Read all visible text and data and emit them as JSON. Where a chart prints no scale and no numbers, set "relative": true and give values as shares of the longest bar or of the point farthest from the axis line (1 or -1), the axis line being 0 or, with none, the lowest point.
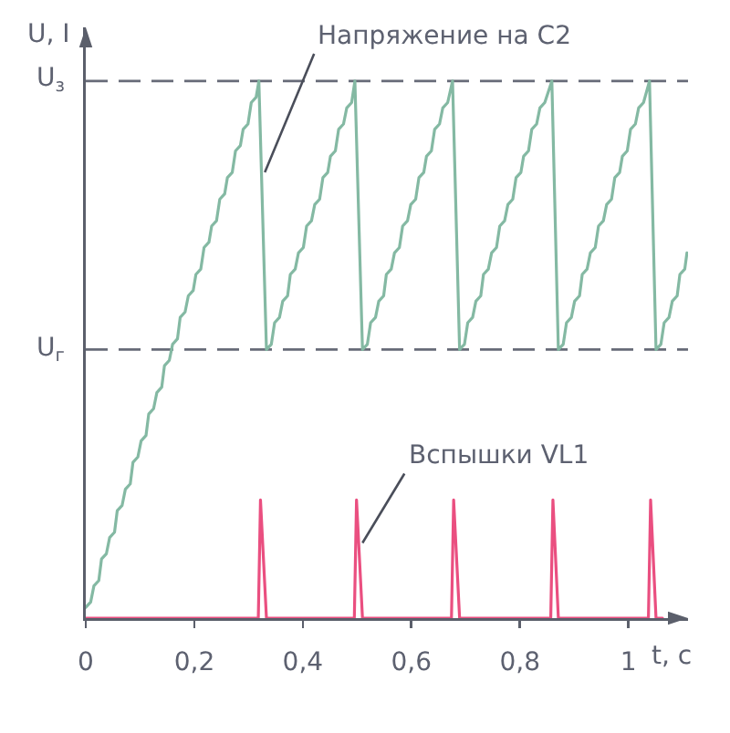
{
  "chart_data": {
    "type": "line",
    "relative": true,
    "ylabel": "U, I",
    "xlabel": "t, c",
    "xlim": [
      0,
      1.11
    ],
    "xticks": [
      0,
      {
        "value": 0.2,
        "label": "0,2"
      },
      {
        "value": 0.4,
        "label": "0,4"
      },
      {
        "value": 0.6,
        "label": "0,6"
      },
      {
        "value": 0.8,
        "label": "0,8"
      },
      1
    ],
    "series": [
      {
        "color": "#84b9a3",
        "x": [
          0,
          0.009,
          0.015,
          0.024,
          0.029,
          0.038,
          0.044,
          0.053,
          0.058,
          0.067,
          0.073,
          0.082,
          0.087,
          0.096,
          0.102,
          0.111,
          0.116,
          0.125,
          0.131,
          0.14,
          0.145,
          0.154,
          0.16,
          0.169,
          0.174,
          0.183,
          0.189,
          0.198,
          0.203,
          0.212,
          0.218,
          0.227,
          0.232,
          0.241,
          0.247,
          0.256,
          0.261,
          0.27,
          0.276,
          0.285,
          0.29,
          0.299,
          0.305,
          0.314,
          0.319,
          0.333,
          0.342,
          0.348,
          0.357,
          0.363,
          0.372,
          0.377,
          0.386,
          0.392,
          0.401,
          0.407,
          0.416,
          0.422,
          0.431,
          0.437,
          0.446,
          0.451,
          0.46,
          0.466,
          0.475,
          0.481,
          0.49,
          0.496,
          0.51,
          0.519,
          0.525,
          0.534,
          0.54,
          0.549,
          0.554,
          0.563,
          0.569,
          0.578,
          0.584,
          0.593,
          0.599,
          0.608,
          0.614,
          0.623,
          0.628,
          0.637,
          0.643,
          0.652,
          0.658,
          0.667,
          0.676,
          0.689,
          0.698,
          0.704,
          0.713,
          0.719,
          0.728,
          0.733,
          0.742,
          0.748,
          0.757,
          0.763,
          0.772,
          0.778,
          0.787,
          0.793,
          0.802,
          0.807,
          0.816,
          0.822,
          0.831,
          0.837,
          0.846,
          0.859,
          0.871,
          0.88,
          0.886,
          0.895,
          0.901,
          0.91,
          0.915,
          0.924,
          0.93,
          0.939,
          0.945,
          0.954,
          0.96,
          0.969,
          0.975,
          0.984,
          0.989,
          0.998,
          1.004,
          1.013,
          1.019,
          1.028,
          1.039,
          1.051,
          1.06,
          1.066,
          1.075,
          1.081,
          1.09,
          1.095,
          1.104,
          1.108
        ],
        "values": [
          0.02,
          0.03,
          0.06,
          0.07,
          0.11,
          0.12,
          0.15,
          0.16,
          0.2,
          0.21,
          0.24,
          0.25,
          0.29,
          0.3,
          0.33,
          0.34,
          0.38,
          0.39,
          0.42,
          0.43,
          0.47,
          0.48,
          0.51,
          0.52,
          0.56,
          0.57,
          0.6,
          0.61,
          0.64,
          0.65,
          0.69,
          0.7,
          0.73,
          0.74,
          0.78,
          0.79,
          0.82,
          0.83,
          0.87,
          0.88,
          0.91,
          0.92,
          0.96,
          0.97,
          1,
          0.5,
          0.51,
          0.55,
          0.56,
          0.59,
          0.6,
          0.64,
          0.65,
          0.68,
          0.69,
          0.73,
          0.74,
          0.77,
          0.78,
          0.82,
          0.83,
          0.86,
          0.87,
          0.91,
          0.92,
          0.95,
          0.96,
          1,
          0.5,
          0.51,
          0.55,
          0.56,
          0.59,
          0.6,
          0.64,
          0.65,
          0.68,
          0.69,
          0.73,
          0.74,
          0.77,
          0.78,
          0.82,
          0.83,
          0.86,
          0.87,
          0.91,
          0.92,
          0.95,
          0.96,
          1,
          0.5,
          0.51,
          0.55,
          0.56,
          0.59,
          0.6,
          0.64,
          0.65,
          0.68,
          0.69,
          0.73,
          0.74,
          0.77,
          0.78,
          0.82,
          0.83,
          0.86,
          0.87,
          0.91,
          0.92,
          0.95,
          0.96,
          1,
          0.5,
          0.51,
          0.55,
          0.56,
          0.59,
          0.6,
          0.64,
          0.65,
          0.68,
          0.69,
          0.73,
          0.74,
          0.77,
          0.78,
          0.82,
          0.83,
          0.86,
          0.87,
          0.91,
          0.92,
          0.95,
          0.96,
          1,
          0.5,
          0.51,
          0.55,
          0.56,
          0.59,
          0.6,
          0.64,
          0.65,
          0.68
        ]
      },
      {
        "color": "#ea4f80",
        "x": [
          0,
          0.318,
          0.322,
          0.333,
          0.495,
          0.499,
          0.51,
          0.674,
          0.678,
          0.689,
          0.857,
          0.861,
          0.871,
          1.037,
          1.041,
          1.051,
          1.063
        ],
        "values": [
          0,
          0,
          0.22,
          0,
          0,
          0.22,
          0,
          0,
          0.22,
          0,
          0,
          0.22,
          0,
          0,
          0.22,
          0,
          0
        ]
      }
    ],
    "ref_lines": [
      {
        "axis": "y",
        "value": 1,
        "label": "U$_{з}$",
        "color": "#676b78",
        "line_style": "dashed"
      },
      {
        "axis": "y",
        "value": 0.5,
        "label": "U$_{г}$",
        "color": "#676b78",
        "line_style": "dashed"
      }
    ],
    "annotations": [
      {
        "text": "Напряжение на C2",
        "x": 0.33,
        "y": 0.83
      },
      {
        "text": "Вспышки VL1",
        "x": 0.51,
        "y": 0.14
      }
    ]
  }
}
